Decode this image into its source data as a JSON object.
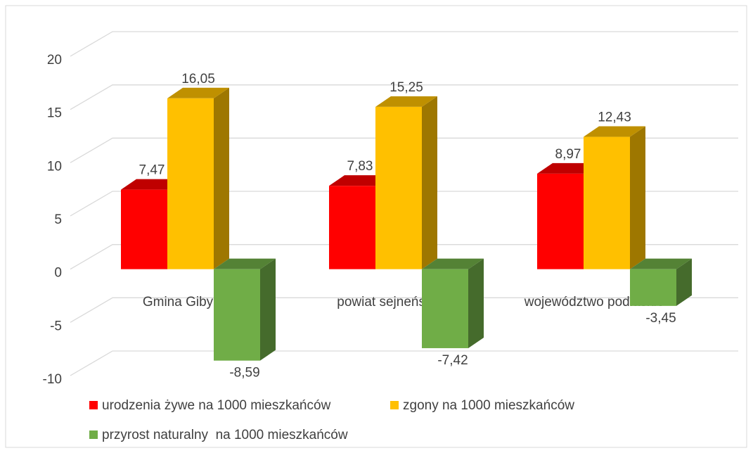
{
  "chart_data": {
    "type": "bar3d",
    "categories": [
      "Gmina Giby",
      "powiat sejneński",
      "województwo podlaskie"
    ],
    "series": [
      {
        "name": "urodzenia żywe na 1000 mieszkańców",
        "color": "#ff0000",
        "values": [
          7.47,
          7.83,
          8.97
        ],
        "value_labels": [
          "7,47",
          "7,83",
          "8,97"
        ]
      },
      {
        "name": "zgony na 1000 mieszkańców",
        "color": "#ffc000",
        "values": [
          16.05,
          15.25,
          12.43
        ],
        "value_labels": [
          "16,05",
          "15,25",
          "12,43"
        ]
      },
      {
        "name": "przyrost naturalny  na 1000 mieszkańców",
        "color": "#70ad47",
        "values": [
          -8.59,
          -7.42,
          -3.45
        ],
        "value_labels": [
          "-8,59",
          "-7,42",
          "-3,45"
        ]
      }
    ],
    "ylim": [
      -10,
      20
    ],
    "yticks": [
      -10,
      -5,
      0,
      5,
      10,
      15,
      20
    ],
    "grid": true,
    "legend": "bottom"
  }
}
